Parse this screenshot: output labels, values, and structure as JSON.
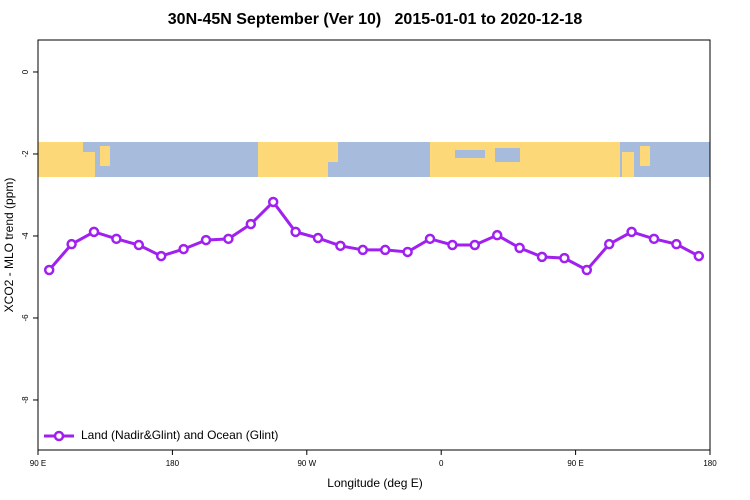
{
  "chart_data": {
    "type": "line",
    "title": "30N-45N September (Ver 10)   2015-01-01 to 2020-12-18",
    "x_label": "Longitude (deg E)",
    "y_label": "XCO2 - MLO trend (ppm)",
    "x": [
      97.5,
      112.5,
      127.5,
      142.5,
      157.5,
      172.5,
      187.5,
      202.5,
      217.5,
      232.5,
      247.5,
      262.5,
      277.5,
      292.5,
      307.5,
      322.5,
      337.5,
      352.5,
      367.5,
      382.5,
      397.5,
      412.5,
      427.5,
      442.5,
      457.5,
      472.5,
      487.5,
      502.5,
      517.5,
      532.5
    ],
    "series": [
      {
        "name": "Land (Nadir&Glint) and Ocean (Glint)",
        "color": "#a020f0",
        "values": [
          -4.83,
          -4.2,
          -3.9,
          -4.07,
          -4.22,
          -4.49,
          -4.32,
          -4.1,
          -4.07,
          -3.71,
          -3.17,
          -3.9,
          -4.05,
          -4.24,
          -4.34,
          -4.34,
          -4.39,
          -4.07,
          -4.22,
          -4.22,
          -3.98,
          -4.29,
          -4.51,
          -4.54,
          -4.83,
          -4.2,
          -3.9,
          -4.07,
          -4.2,
          -4.49
        ]
      }
    ],
    "xlim": [
      90,
      540
    ],
    "xticks": [
      {
        "value": 90,
        "label": "90 E"
      },
      {
        "value": 180,
        "label": "180"
      },
      {
        "value": 270,
        "label": "90 W"
      },
      {
        "value": 360,
        "label": "0"
      },
      {
        "value": 450,
        "label": "90 E"
      },
      {
        "value": 540,
        "label": "180"
      }
    ],
    "ylim": [
      -9.22,
      0.78
    ],
    "yticks": [
      0,
      -2,
      -4,
      -6,
      -8
    ],
    "legend": "bottom-left"
  }
}
